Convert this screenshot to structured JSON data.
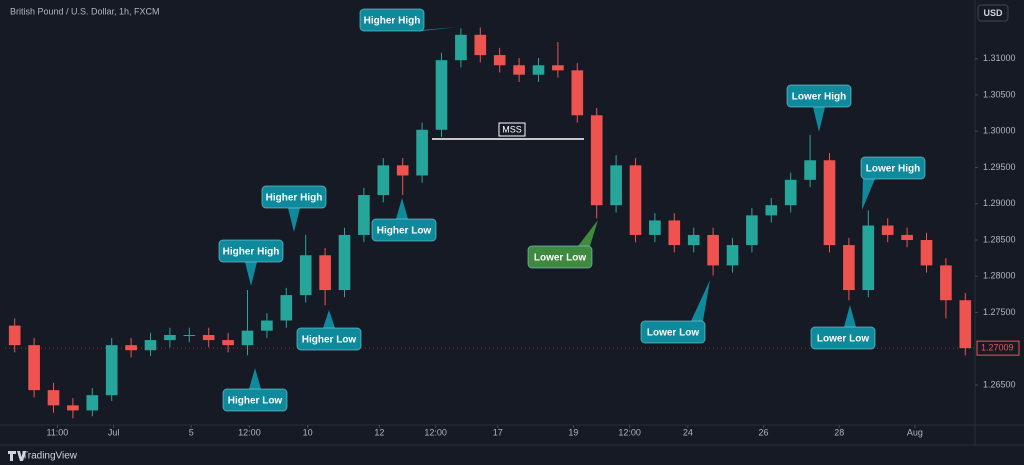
{
  "chart_data": {
    "type": "candlestick",
    "title": "British Pound / U.S. Dollar, 1h, FXCM",
    "currency": "USD",
    "brand": "TradingView",
    "up_color": "#26a69a",
    "down_color": "#ef5350",
    "open": [
      1.2732,
      1.2705,
      1.2643,
      1.2622,
      1.2615,
      1.2636,
      1.2705,
      1.2698,
      1.2712,
      1.2719,
      1.2719,
      1.2712,
      1.2705,
      1.2725,
      1.2739,
      1.2774,
      1.2829,
      1.2781,
      1.2857,
      1.2912,
      1.2953,
      1.2939,
      1.3002,
      1.3098,
      1.3133,
      1.3105,
      1.3091,
      1.3078,
      1.3091,
      1.3084,
      1.3022,
      1.2898,
      1.2953,
      1.2857,
      1.2877,
      1.2843,
      1.2857,
      1.2815,
      1.2843,
      1.2884,
      1.2898,
      1.2933,
      1.296,
      1.2843,
      1.2781,
      1.287,
      1.2857,
      1.285,
      1.2815,
      1.2767
    ],
    "high": [
      1.2742,
      1.2715,
      1.2653,
      1.2632,
      1.2646,
      1.2715,
      1.2715,
      1.2722,
      1.2729,
      1.2729,
      1.2729,
      1.2722,
      1.2781,
      1.2749,
      1.2784,
      1.2857,
      1.2839,
      1.2867,
      1.2922,
      1.2963,
      1.2963,
      1.3012,
      1.3108,
      1.3142,
      1.3143,
      1.3115,
      1.3101,
      1.3101,
      1.3123,
      1.3094,
      1.3032,
      1.2967,
      1.2963,
      1.2887,
      1.2887,
      1.2867,
      1.2867,
      1.2853,
      1.2894,
      1.2908,
      1.2943,
      1.2995,
      1.297,
      1.2853,
      1.2891,
      1.288,
      1.2867,
      1.286,
      1.2825,
      1.2777
    ],
    "low": [
      1.2695,
      1.2633,
      1.2612,
      1.2604,
      1.2607,
      1.2628,
      1.2688,
      1.269,
      1.2702,
      1.2709,
      1.2702,
      1.2695,
      1.2691,
      1.2715,
      1.2729,
      1.2764,
      1.276,
      1.2771,
      1.2847,
      1.2902,
      1.2912,
      1.2929,
      1.2992,
      1.3088,
      1.3095,
      1.3081,
      1.3068,
      1.3068,
      1.3074,
      1.3012,
      1.288,
      1.2888,
      1.2847,
      1.2847,
      1.2833,
      1.2833,
      1.2801,
      1.2805,
      1.2833,
      1.2874,
      1.2888,
      1.2923,
      1.2833,
      1.2767,
      1.2771,
      1.2847,
      1.284,
      1.2805,
      1.2742,
      1.2691
    ],
    "close": [
      1.2705,
      1.2643,
      1.2622,
      1.2615,
      1.2636,
      1.2705,
      1.2698,
      1.2712,
      1.2719,
      1.2719,
      1.2712,
      1.2705,
      1.2725,
      1.2739,
      1.2774,
      1.2829,
      1.2781,
      1.2857,
      1.2912,
      1.2953,
      1.2939,
      1.3002,
      1.3098,
      1.3133,
      1.3105,
      1.3091,
      1.3078,
      1.3091,
      1.3084,
      1.3022,
      1.2898,
      1.2953,
      1.2857,
      1.2877,
      1.2843,
      1.2857,
      1.2815,
      1.2843,
      1.2884,
      1.2898,
      1.2933,
      1.296,
      1.2843,
      1.2781,
      1.287,
      1.2857,
      1.285,
      1.2815,
      1.2767,
      1.27009
    ],
    "last_price_label": "1.27009",
    "xlim": [
      -0.5,
      49.5
    ],
    "xticks": [
      {
        "value": 2.2,
        "label": "11:00"
      },
      {
        "value": 5.1,
        "label": "Jul"
      },
      {
        "value": 9.1,
        "label": "5"
      },
      {
        "value": 12.1,
        "label": "12:00"
      },
      {
        "value": 15.1,
        "label": "10"
      },
      {
        "value": 18.8,
        "label": "12"
      },
      {
        "value": 21.7,
        "label": "12:00"
      },
      {
        "value": 24.9,
        "label": "17"
      },
      {
        "value": 28.8,
        "label": "19"
      },
      {
        "value": 31.7,
        "label": "12:00"
      },
      {
        "value": 34.7,
        "label": "24"
      },
      {
        "value": 38.6,
        "label": "26"
      },
      {
        "value": 42.5,
        "label": "28"
      },
      {
        "value": 46.4,
        "label": "Aug"
      }
    ],
    "ylim": [
      1.2588,
      1.3181
    ],
    "yticks": [
      {
        "value": 1.265,
        "label": "1.26500"
      },
      {
        "value": 1.275,
        "label": "1.27500"
      },
      {
        "value": 1.28,
        "label": "1.28000"
      },
      {
        "value": 1.285,
        "label": "1.28500"
      },
      {
        "value": 1.29,
        "label": "1.29000"
      },
      {
        "value": 1.295,
        "label": "1.29500"
      },
      {
        "value": 1.3,
        "label": "1.30000"
      },
      {
        "value": 1.305,
        "label": "1.30500"
      },
      {
        "value": 1.31,
        "label": "1.31000"
      }
    ],
    "annotations": [
      "Higher High",
      "Higher High",
      "Higher High",
      "Higher Low",
      "Higher Low",
      "Higher Low",
      "Lower Low",
      "Lower High",
      "Lower High",
      "Lower Low",
      "Lower Low",
      "MSS"
    ]
  }
}
